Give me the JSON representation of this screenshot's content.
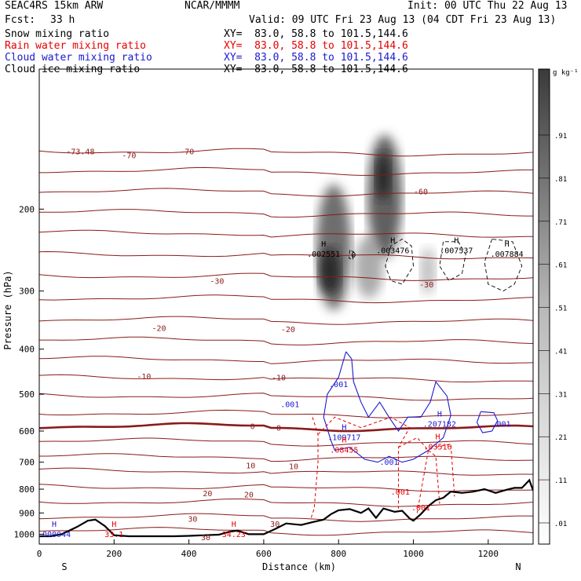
{
  "header": {
    "model": "SEAC4RS 15km ARW",
    "org": "NCAR/MMMM",
    "init": "Init: 00 UTC Thu 22 Aug 13",
    "fcst_label": "Fcst:",
    "fcst_value": "33 h",
    "valid": "Valid: 09 UTC Fri 23 Aug 13 (04 CDT Fri 23 Aug 13)"
  },
  "fields": [
    {
      "name": "Snow mixing ratio",
      "color": "#000000",
      "xy": "XY=  83.0, 58.8 to 101.5,144.6"
    },
    {
      "name": "Rain water mixing ratio",
      "color": "#e60000",
      "xy": "XY=  83.0, 58.8 to 101.5,144.6"
    },
    {
      "name": "Cloud water mixing ratio",
      "color": "#1a1ad0",
      "xy": "XY=  83.0, 58.8 to 101.5,144.6"
    },
    {
      "name": "Cloud ice mixing ratio",
      "color": "#000000",
      "xy": "XY=  83.0, 58.8 to 101.5,144.6"
    }
  ],
  "chart_data": {
    "type": "heatmap",
    "xlabel": "Distance (km)",
    "ylabel": "Pressure (hPa)",
    "xlim": [
      0,
      1320
    ],
    "ylim": [
      1050,
      100
    ],
    "yscale": "log",
    "x_ticks": [
      0,
      200,
      400,
      600,
      800,
      1000,
      1200
    ],
    "y_ticks": [
      200,
      300,
      400,
      500,
      600,
      700,
      800,
      900,
      1000
    ],
    "x_end_labels": {
      "left": "S",
      "right": "N"
    },
    "colorbar": {
      "unit": "g kg⁻¹",
      "ticks": [
        ".91",
        ".81",
        ".71",
        ".61",
        ".51",
        ".41",
        ".31",
        ".21",
        ".11",
        ".01"
      ],
      "min": 0.01,
      "max": 1.0
    },
    "temperature_contours": {
      "color": "#8b1a1a",
      "levels": [
        -70,
        -60,
        -50,
        -40,
        -30,
        -20,
        -10,
        0,
        10,
        20,
        30
      ],
      "labels": [
        {
          "text": "-73.48",
          "x": 110,
          "p": 150
        },
        {
          "text": "-70",
          "x": 240,
          "p": 153
        },
        {
          "text": "-70",
          "x": 395,
          "p": 150
        },
        {
          "text": "-60",
          "x": 1020,
          "p": 183
        },
        {
          "text": "-30",
          "x": 475,
          "p": 285
        },
        {
          "text": "-30",
          "x": 1035,
          "p": 290
        },
        {
          "text": "-20",
          "x": 320,
          "p": 360
        },
        {
          "text": "-20",
          "x": 665,
          "p": 362
        },
        {
          "text": "-10",
          "x": 280,
          "p": 457
        },
        {
          "text": "-10",
          "x": 640,
          "p": 460
        },
        {
          "text": "0",
          "x": 570,
          "p": 585
        },
        {
          "text": "0",
          "x": 640,
          "p": 590
        },
        {
          "text": "10",
          "x": 565,
          "p": 710
        },
        {
          "text": "10",
          "x": 680,
          "p": 713
        },
        {
          "text": "20",
          "x": 450,
          "p": 815
        },
        {
          "text": "20",
          "x": 560,
          "p": 820
        },
        {
          "text": "30",
          "x": 410,
          "p": 925
        },
        {
          "text": "30",
          "x": 630,
          "p": 950
        },
        {
          "text": "30",
          "x": 445,
          "p": 1013
        }
      ]
    },
    "terrain": {
      "x": [
        0,
        30,
        60,
        100,
        130,
        150,
        175,
        200,
        240,
        280,
        320,
        360,
        400,
        440,
        480,
        510,
        530,
        560,
        600,
        630,
        660,
        700,
        730,
        760,
        780,
        800,
        830,
        860,
        880,
        900,
        920,
        950,
        970,
        990,
        1000,
        1020,
        1040,
        1060,
        1080,
        1100,
        1130,
        1160,
        1190,
        1220,
        1250,
        1270,
        1290,
        1300,
        1310,
        1320
      ],
      "p": [
        1010,
        1010,
        1000,
        965,
        935,
        930,
        960,
        1005,
        1010,
        1010,
        1010,
        1010,
        1008,
        1005,
        1002,
        987,
        982,
        1000,
        1000,
        975,
        948,
        955,
        942,
        930,
        905,
        888,
        883,
        900,
        880,
        922,
        880,
        895,
        890,
        925,
        935,
        905,
        870,
        845,
        835,
        810,
        815,
        810,
        800,
        815,
        802,
        795,
        795,
        780,
        765,
        805
      ]
    },
    "maxima": [
      {
        "field": "Cloud water",
        "text": ".000044",
        "x": 40,
        "p": 1010
      },
      {
        "field": "Rain water",
        "text": "33.1",
        "x": 200,
        "p": 1010
      },
      {
        "field": "Rain water",
        "text": "34.23",
        "x": 520,
        "p": 1010
      },
      {
        "field": "Cloud ice",
        "text": ".002551",
        "x": 760,
        "p": 252
      },
      {
        "field": "Cloud ice",
        "text": ".003476",
        "x": 945,
        "p": 248
      },
      {
        "field": "Cloud ice",
        "text": ".007537",
        "x": 1115,
        "p": 248
      },
      {
        "field": "Cloud ice",
        "text": ".007884",
        "x": 1250,
        "p": 252
      },
      {
        "field": "Cloud water",
        "text": ".109717",
        "x": 815,
        "p": 625
      },
      {
        "field": "Cloud water",
        "text": ".207182",
        "x": 1070,
        "p": 585
      },
      {
        "field": "Rain water",
        "text": ".08455",
        "x": 815,
        "p": 665
      },
      {
        "field": "Rain water",
        "text": ".03516",
        "x": 1065,
        "p": 655
      }
    ],
    "contour_labels": [
      {
        "field": "Cloud water",
        "text": ".001",
        "x": 800,
        "p": 475
      },
      {
        "field": "Cloud water",
        "text": ".001",
        "x": 670,
        "p": 525
      },
      {
        "field": "Cloud water",
        "text": ".001",
        "x": 935,
        "p": 698
      },
      {
        "field": "Cloud water",
        "text": ".001",
        "x": 1235,
        "p": 578
      },
      {
        "field": "Rain water",
        "text": ".001",
        "x": 965,
        "p": 810
      },
      {
        "field": "Rain water",
        "text": ".001",
        "x": 1020,
        "p": 875
      },
      {
        "field": "Cloud ice",
        "text": "0",
        "x": 840,
        "p": 250
      }
    ]
  }
}
